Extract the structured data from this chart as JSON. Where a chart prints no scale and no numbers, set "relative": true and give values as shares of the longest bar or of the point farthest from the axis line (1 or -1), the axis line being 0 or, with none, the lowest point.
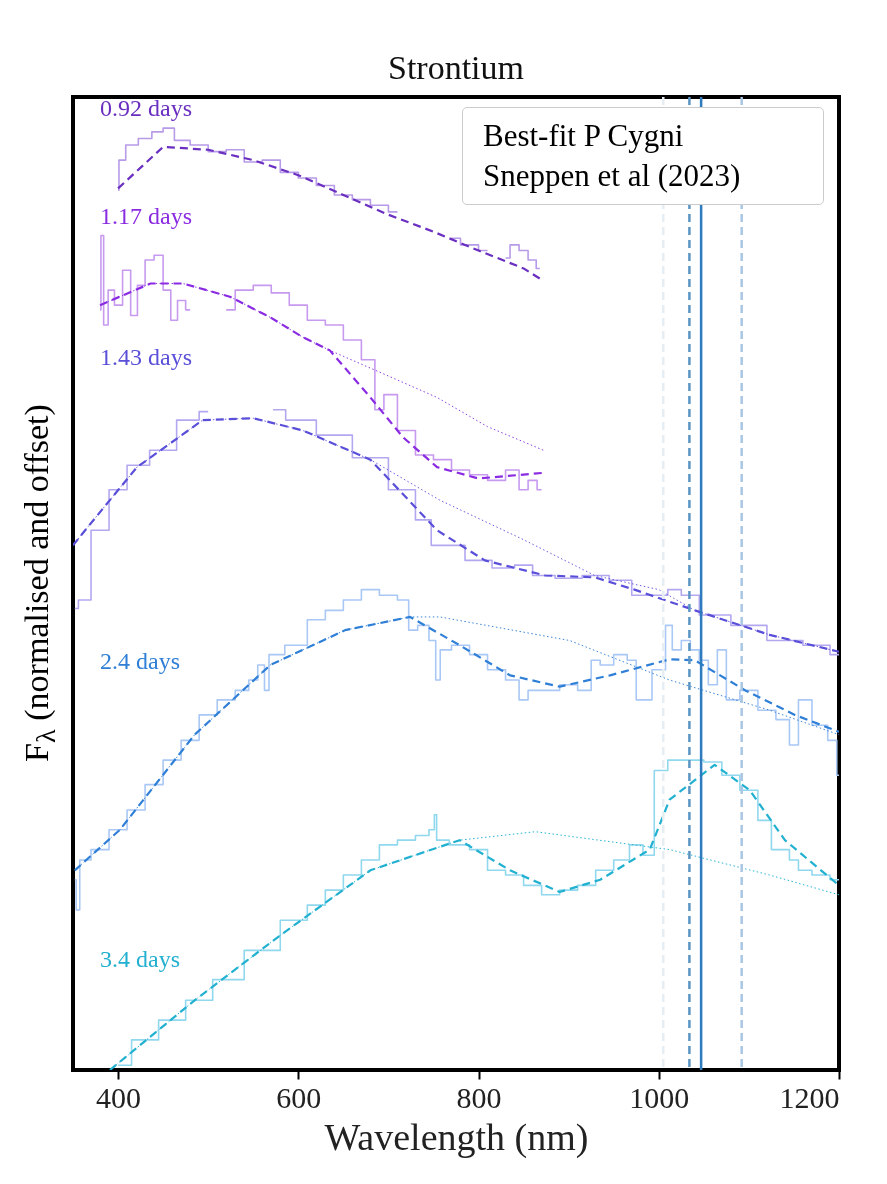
{
  "chart_data": {
    "type": "line",
    "title": "Strontium",
    "xlabel": "Wavelength (nm)",
    "ylabel": "F$_{λ}$  (normalised and offset)",
    "relative": true,
    "xlim": [
      350,
      1200
    ],
    "xticks": [
      400,
      600,
      800,
      {
        "value": 1000,
        "label": "1000"
      },
      {
        "value": 1200,
        "label": "1200"
      }
    ],
    "grid": false,
    "legend": false,
    "marker": "none",
    "annotations": [
      "Best-fit P Cygni",
      "Sneppen et al (2023)"
    ],
    "ref_lines": [
      {
        "axis": "x",
        "value": 1005,
        "color": "#e6edf3",
        "line_style": "dashed"
      },
      {
        "axis": "x",
        "value": 1034,
        "color": "#5b95c4",
        "line_style": "dashed"
      },
      {
        "axis": "x",
        "value": 1047,
        "color": "#2f7bbf",
        "line_style": "solid"
      },
      {
        "axis": "x",
        "value": 1092,
        "color": "#a9c6e2",
        "line_style": "dashed"
      }
    ],
    "series": [
      {
        "type": "step",
        "line_style": "solid",
        "color": "#b89be8",
        "x": [
          400,
          402,
          415,
          430,
          445,
          455,
          470,
          490,
          510,
          530,
          550,
          570,
          590,
          610,
          630,
          650,
          670,
          690,
          710,
          730,
          770,
          790,
          810,
          820,
          830,
          840,
          850,
          860,
          868
        ],
        "values": [
          0.934,
          0.966,
          0.982,
          0.989,
          0.996,
          1.0,
          0.987,
          0.982,
          0.975,
          0.977,
          0.964,
          0.966,
          0.953,
          0.947,
          0.939,
          0.929,
          0.924,
          0.918,
          0.911,
          null,
          0.883,
          0.876,
          0.87,
          null,
          0.862,
          0.876,
          0.87,
          0.86,
          0.851
        ]
      },
      {
        "type": "step",
        "line_style": "solid",
        "color": "#c79af0",
        "x": [
          380,
          382,
          386,
          392,
          400,
          410,
          418,
          425,
          435,
          445,
          455,
          462,
          470,
          480,
          488,
          520,
          540,
          560,
          580,
          600,
          620,
          640,
          660,
          680,
          690,
          700,
          720,
          740,
          760,
          780,
          800,
          820,
          840,
          850,
          860,
          870
        ],
        "values": [
          0.807,
          0.886,
          0.791,
          0.828,
          0.812,
          0.849,
          0.801,
          0.833,
          0.86,
          0.865,
          0.828,
          0.796,
          0.817,
          0.807,
          null,
          0.807,
          0.828,
          0.833,
          0.825,
          0.812,
          0.796,
          0.791,
          0.775,
          0.754,
          0.701,
          0.717,
          0.679,
          0.653,
          0.648,
          0.637,
          0.632,
          0.626,
          0.637,
          0.616,
          0.626,
          0.616
        ]
      },
      {
        "type": "step",
        "line_style": "solid",
        "color": "#b3a8f0",
        "x": [
          352,
          360,
          380,
          400,
          420,
          450,
          480,
          500,
          505,
          572,
          600,
          640,
          680,
          720,
          740,
          755,
          770,
          800,
          830,
          850,
          870,
          900,
          930,
          960,
          980,
          1000,
          1020,
          1030,
          1060,
          1100,
          1140,
          1180,
          1200
        ],
        "values": [
          0.49,
          0.499,
          0.573,
          0.616,
          0.642,
          0.658,
          0.69,
          0.699,
          null,
          0.701,
          0.69,
          0.674,
          0.65,
          0.616,
          0.584,
          0.557,
          0.557,
          0.541,
          0.533,
          0.536,
          0.525,
          0.522,
          0.525,
          0.52,
          0.504,
          0.504,
          0.51,
          0.504,
          0.483,
          0.472,
          0.456,
          0.451,
          0.441
        ]
      },
      {
        "type": "step",
        "line_style": "solid",
        "color": "#a9c8f5",
        "x": [
          352,
          355,
          360,
          380,
          400,
          420,
          440,
          460,
          480,
          500,
          520,
          540,
          550,
          560,
          565,
          570,
          600,
          620,
          640,
          660,
          680,
          700,
          720,
          725,
          740,
          750,
          755,
          760,
          780,
          800,
          820,
          840,
          850,
          860,
          880,
          900,
          920,
          930,
          940,
          960,
          970,
          980,
          1005,
          1010,
          1020,
          1030,
          1040,
          1050,
          1060,
          1070,
          1080,
          1100,
          1120,
          1140,
          1150,
          1160,
          1180,
          1195,
          1200
        ],
        "values": [
          0.202,
          0.17,
          0.223,
          0.234,
          0.255,
          0.276,
          0.303,
          0.329,
          0.35,
          0.377,
          0.393,
          0.403,
          0.414,
          0.43,
          0.403,
          0.441,
          0.451,
          0.478,
          0.488,
          0.499,
          0.51,
          0.504,
          0.499,
          0.467,
          0.472,
          0.456,
          0.414,
          0.446,
          0.451,
          0.441,
          0.425,
          0.414,
          0.393,
          0.403,
          0.403,
          0.409,
          0.403,
          0.435,
          0.43,
          0.441,
          0.435,
          0.393,
          0.425,
          0.472,
          0.446,
          0.456,
          0.446,
          0.435,
          0.409,
          0.446,
          0.393,
          0.403,
          0.382,
          0.372,
          0.345,
          0.393,
          0.366,
          0.35,
          0.313
        ]
      },
      {
        "type": "step",
        "line_style": "solid",
        "color": "#90d8ee",
        "x": [
          400,
          430,
          460,
          490,
          520,
          560,
          600,
          620,
          640,
          660,
          680,
          700,
          720,
          740,
          750,
          752,
          755,
          780,
          800,
          820,
          840,
          860,
          880,
          900,
          920,
          940,
          960,
          975,
          990,
          1000,
          1020,
          1040,
          1060,
          1080,
          1100,
          1120,
          1130,
          1140,
          1150,
          1160,
          1180,
          1200
        ],
        "values": [
          0.005,
          0.032,
          0.053,
          0.074,
          0.096,
          0.127,
          0.159,
          0.175,
          0.191,
          0.207,
          0.223,
          0.239,
          0.244,
          0.249,
          0.255,
          0.271,
          0.244,
          0.239,
          0.234,
          0.212,
          0.207,
          0.196,
          0.186,
          0.191,
          0.196,
          0.212,
          0.223,
          0.239,
          0.228,
          0.318,
          0.329,
          0.329,
          0.327,
          0.313,
          0.297,
          0.265,
          0.234,
          0.234,
          0.223,
          0.212,
          0.207,
          0.202
        ]
      },
      {
        "type": "line",
        "line_style": "dotted",
        "color": "#8e3fe0",
        "x": [
          380,
          436,
          472,
          524,
          569,
          605,
          635,
          690,
          754,
          810,
          872
        ],
        "values": [
          0.812,
          0.835,
          0.835,
          0.821,
          0.799,
          0.778,
          0.764,
          0.741,
          0.714,
          0.683,
          0.658
        ]
      },
      {
        "type": "line",
        "line_style": "dotted",
        "color": "#6a5ce0",
        "x": [
          350,
          366,
          421,
          494,
          550,
          605,
          680,
          757,
          850,
          929,
          1000,
          1040,
          1123,
          1200
        ],
        "values": [
          0.557,
          0.576,
          0.64,
          0.69,
          0.692,
          0.679,
          0.648,
          0.605,
          0.563,
          0.525,
          0.51,
          0.488,
          0.462,
          0.444
        ]
      },
      {
        "type": "line",
        "line_style": "dotted",
        "color": "#3a86d8",
        "x": [
          352,
          402,
          485,
          569,
          652,
          724,
          757,
          901,
          1012,
          1123,
          1200
        ],
        "values": [
          0.212,
          0.255,
          0.356,
          0.43,
          0.467,
          0.481,
          0.481,
          0.456,
          0.414,
          0.382,
          0.356
        ]
      },
      {
        "type": "line",
        "line_style": "dotted",
        "color": "#28b4d6",
        "x": [
          391,
          485,
          580,
          680,
          779,
          863,
          1012,
          1123,
          1200
        ],
        "values": [
          0.0,
          0.074,
          0.143,
          0.212,
          0.244,
          0.253,
          0.234,
          0.207,
          0.186
        ]
      },
      {
        "type": "line",
        "name": "0.92 days",
        "line_style": "dashed",
        "color": "#6a2fc0",
        "x": [
          400,
          450,
          500,
          550,
          600,
          650,
          700,
          750,
          800,
          850,
          870
        ],
        "values": [
          0.936,
          0.98,
          0.977,
          0.966,
          0.95,
          0.929,
          0.908,
          0.89,
          0.87,
          0.851,
          0.839
        ]
      },
      {
        "type": "line",
        "name": "1.17 days",
        "line_style": "dashed",
        "color": "#8a2be2",
        "x": [
          380,
          436,
          472,
          524,
          569,
          605,
          635,
          680,
          716,
          754,
          800,
          872
        ],
        "values": [
          0.812,
          0.835,
          0.835,
          0.821,
          0.799,
          0.778,
          0.764,
          0.714,
          0.672,
          0.64,
          0.628,
          0.634
        ]
      },
      {
        "type": "line",
        "name": "1.43 days",
        "line_style": "dashed",
        "color": "#5a4fd8",
        "x": [
          350,
          366,
          421,
          494,
          550,
          605,
          680,
          754,
          807,
          874,
          929,
          973,
          1040,
          1123,
          1200
        ],
        "values": [
          0.557,
          0.576,
          0.64,
          0.69,
          0.692,
          0.679,
          0.648,
          0.573,
          0.541,
          0.525,
          0.523,
          0.51,
          0.488,
          0.462,
          0.444
        ]
      },
      {
        "type": "line",
        "name": "2.4 days",
        "line_style": "dashed",
        "color": "#2f7fd6",
        "x": [
          352,
          402,
          485,
          569,
          652,
          724,
          779,
          835,
          890,
          946,
          1012,
          1040,
          1096,
          1151,
          1200
        ],
        "values": [
          0.212,
          0.255,
          0.356,
          0.43,
          0.467,
          0.481,
          0.451,
          0.419,
          0.407,
          0.419,
          0.436,
          0.435,
          0.403,
          0.377,
          0.359
        ]
      },
      {
        "type": "line",
        "name": "3.4 days",
        "line_style": "dashed",
        "color": "#22b0d0",
        "x": [
          391,
          485,
          580,
          680,
          779,
          835,
          890,
          935,
          990,
          1012,
          1062,
          1101,
          1140,
          1200
        ],
        "values": [
          0.0,
          0.074,
          0.143,
          0.212,
          0.244,
          0.212,
          0.189,
          0.202,
          0.234,
          0.287,
          0.324,
          0.297,
          0.244,
          0.196
        ]
      }
    ]
  }
}
